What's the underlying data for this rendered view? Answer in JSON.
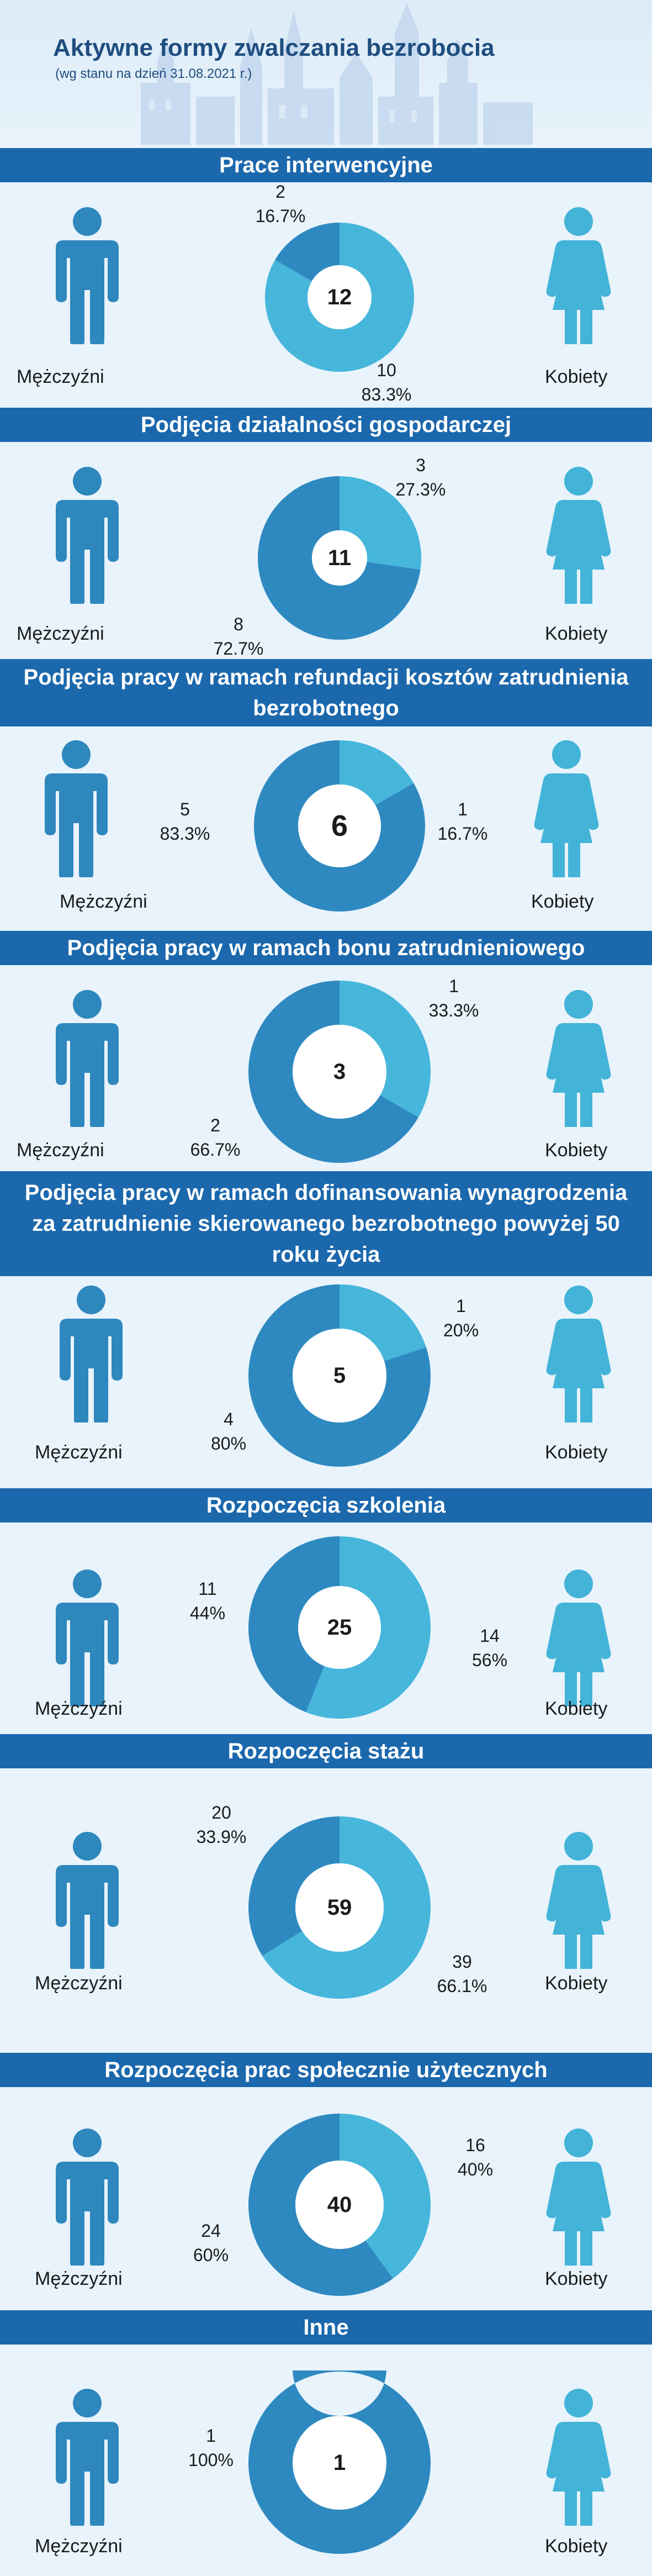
{
  "header": {
    "title": "Aktywne formy zwalczania bezrobocia",
    "subtitle": "(wg stanu na dzień 31.08.2021 r.)"
  },
  "labels": {
    "men": "Mężczyźni",
    "women": "Kobiety"
  },
  "colors": {
    "banner": "#1b68ad",
    "men": "#2e89c0",
    "women": "#46b6db",
    "figure_men": "#2e87bd",
    "figure_women": "#43b3d8",
    "background": "#e8f3fb"
  },
  "chart_data": [
    {
      "type": "pie",
      "title": "Prace interwencyjne",
      "total": "12",
      "series": [
        {
          "name": "Mężczyźni",
          "value": 2,
          "label": "2",
          "percent": "16.7%"
        },
        {
          "name": "Kobiety",
          "value": 10,
          "label": "10",
          "percent": "83.3%"
        }
      ]
    },
    {
      "type": "pie",
      "title": "Podjęcia działalności gospodarczej",
      "total": "11",
      "series": [
        {
          "name": "Mężczyźni",
          "value": 8,
          "label": "8",
          "percent": "72.7%"
        },
        {
          "name": "Kobiety",
          "value": 3,
          "label": "3",
          "percent": "27.3%"
        }
      ]
    },
    {
      "type": "pie",
      "title": "Podjęcia pracy w ramach refundacji kosztów zatrudnienia bezrobotnego",
      "total": "6",
      "series": [
        {
          "name": "Mężczyźni",
          "value": 5,
          "label": "5",
          "percent": "83.3%"
        },
        {
          "name": "Kobiety",
          "value": 1,
          "label": "1",
          "percent": "16.7%"
        }
      ]
    },
    {
      "type": "pie",
      "title": "Podjęcia pracy w ramach bonu zatrudnieniowego",
      "total": "3",
      "series": [
        {
          "name": "Mężczyźni",
          "value": 2,
          "label": "2",
          "percent": "66.7%"
        },
        {
          "name": "Kobiety",
          "value": 1,
          "label": "1",
          "percent": "33.3%"
        }
      ]
    },
    {
      "type": "pie",
      "title": "Podjęcia pracy w ramach dofinansowania wynagrodzenia za zatrudnienie skierowanego bezrobotnego powyżej 50 roku życia",
      "total": "5",
      "series": [
        {
          "name": "Mężczyźni",
          "value": 4,
          "label": "4",
          "percent": "80%"
        },
        {
          "name": "Kobiety",
          "value": 1,
          "label": "1",
          "percent": "20%"
        }
      ]
    },
    {
      "type": "pie",
      "title": "Rozpoczęcia szkolenia",
      "total": "25",
      "series": [
        {
          "name": "Mężczyźni",
          "value": 11,
          "label": "11",
          "percent": "44%"
        },
        {
          "name": "Kobiety",
          "value": 14,
          "label": "14",
          "percent": "56%"
        }
      ]
    },
    {
      "type": "pie",
      "title": "Rozpoczęcia stażu",
      "total": "59",
      "series": [
        {
          "name": "Mężczyźni",
          "value": 20,
          "label": "20",
          "percent": "33.9%"
        },
        {
          "name": "Kobiety",
          "value": 39,
          "label": "39",
          "percent": "66.1%"
        }
      ]
    },
    {
      "type": "pie",
      "title": "Rozpoczęcia prac społecznie użytecznych",
      "total": "40",
      "series": [
        {
          "name": "Mężczyźni",
          "value": 24,
          "label": "24",
          "percent": "60%"
        },
        {
          "name": "Kobiety",
          "value": 16,
          "label": "16",
          "percent": "40%"
        }
      ]
    },
    {
      "type": "pie",
      "title": "Inne",
      "total": "1",
      "series": [
        {
          "name": "Mężczyźni",
          "value": 1,
          "label": "1",
          "percent": "100%"
        },
        {
          "name": "Kobiety",
          "value": 0,
          "label": "",
          "percent": ""
        }
      ]
    }
  ]
}
